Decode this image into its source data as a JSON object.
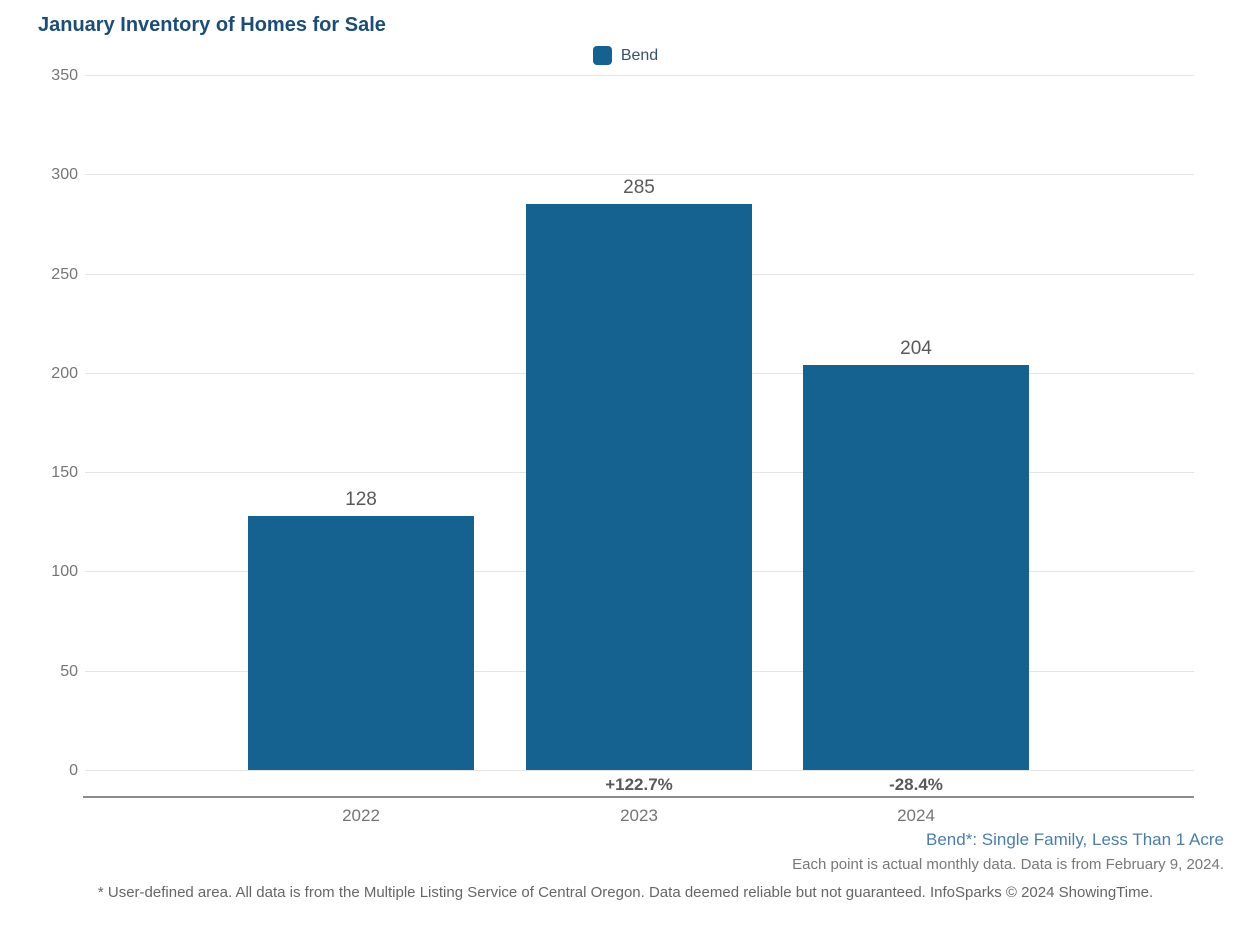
{
  "header": {
    "title": "January Inventory of Homes for Sale"
  },
  "legend": {
    "label": "Bend",
    "swatch_color": "#15618f"
  },
  "chart_data": {
    "type": "bar",
    "title": "January Inventory of Homes for Sale",
    "categories": [
      "2022",
      "2023",
      "2024"
    ],
    "series": [
      {
        "name": "Bend",
        "values": [
          128,
          285,
          204
        ]
      }
    ],
    "bar_labels": [
      "128",
      "285",
      "204"
    ],
    "pct_change_labels": [
      "",
      "+122.7%",
      "-28.4%"
    ],
    "xlabel": "",
    "ylabel": "",
    "ylim": [
      0,
      350
    ],
    "yticks": [
      0,
      50,
      100,
      150,
      200,
      250,
      300,
      350
    ],
    "grid": "horizontal",
    "legend_position": "top-center",
    "bar_color": "#15618f"
  },
  "footnotes": {
    "series_definition": "Bend*: Single Family, Less Than 1 Acre",
    "data_note": "Each point is actual monthly data. Data is from February 9, 2024.",
    "disclaimer": "* User-defined area. All data is from the Multiple Listing Service of Central Oregon. Data deemed reliable but not guaranteed. InfoSparks © 2024 ShowingTime."
  }
}
